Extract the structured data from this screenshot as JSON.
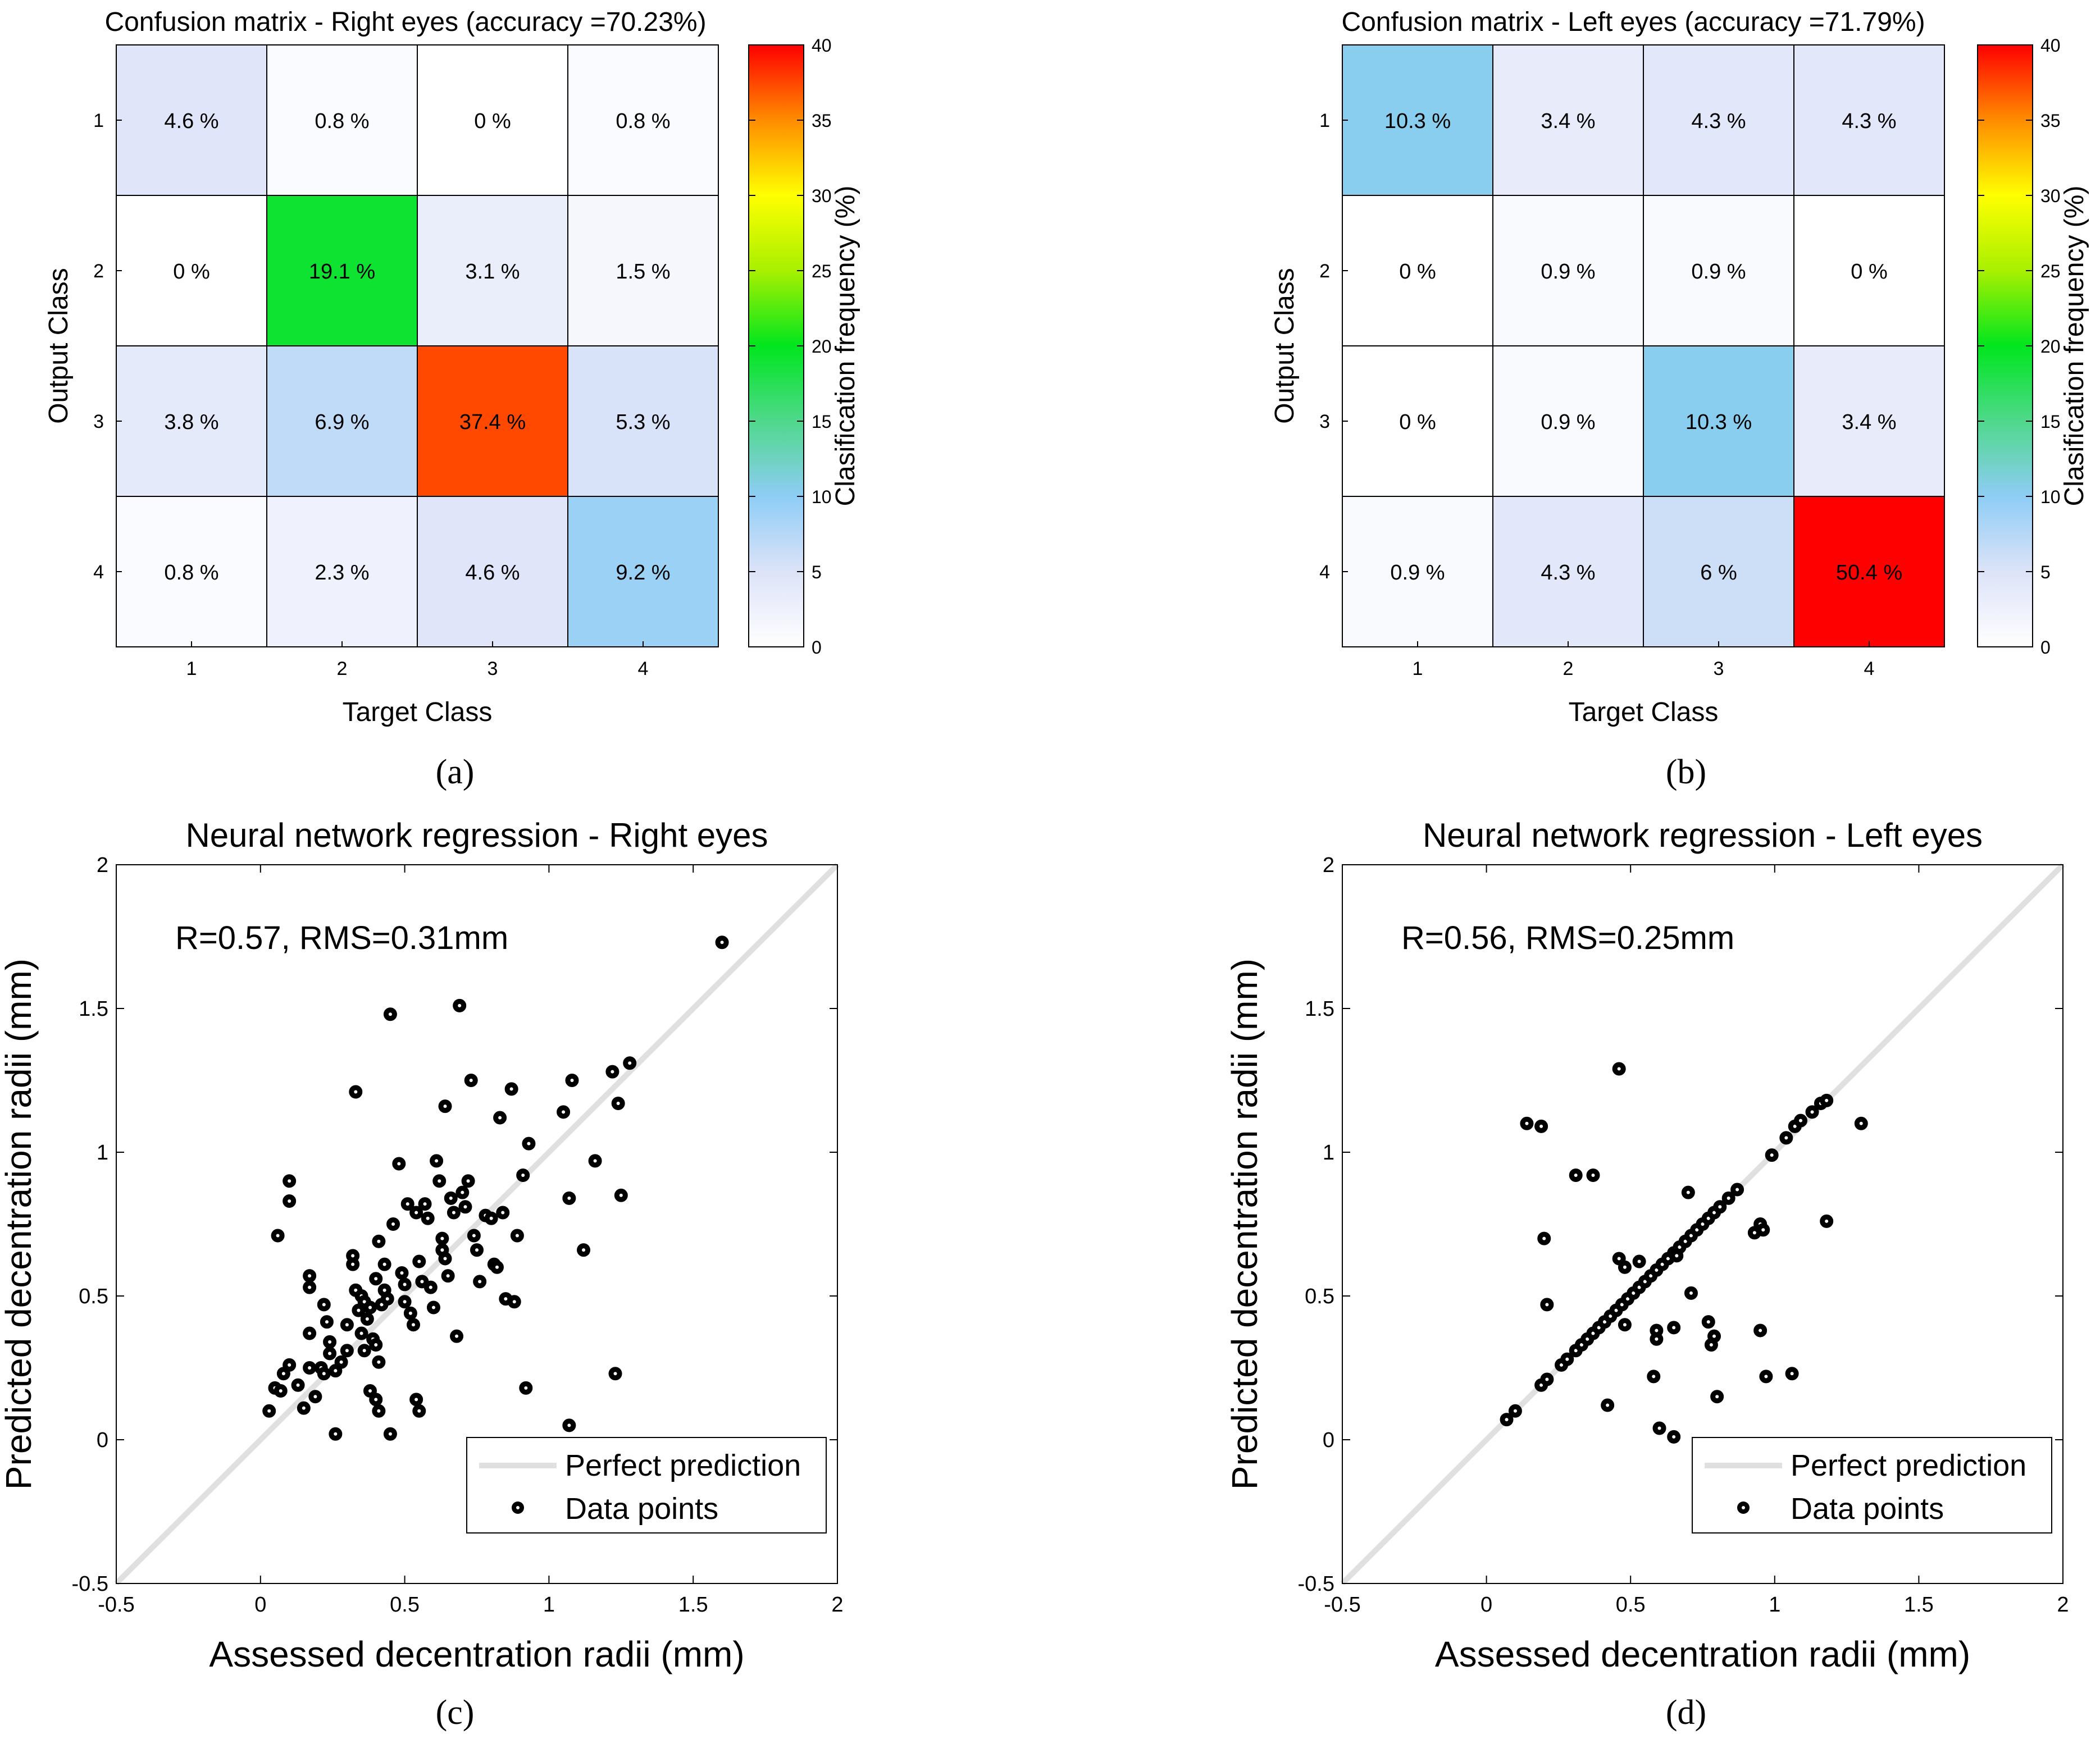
{
  "chart_data": [
    {
      "id": "a",
      "type": "heatmap",
      "subcaption": "(a)",
      "title": "Confusion matrix - Right eyes (accuracy =70.23%)",
      "xlabel": "Target Class",
      "ylabel": "Output Class",
      "x_categories": [
        "1",
        "2",
        "3",
        "4"
      ],
      "y_categories": [
        "1",
        "2",
        "3",
        "4"
      ],
      "values": [
        [
          4.6,
          0.8,
          0,
          0.8
        ],
        [
          0,
          19.1,
          3.1,
          1.5
        ],
        [
          3.8,
          6.9,
          37.4,
          5.3
        ],
        [
          0.8,
          2.3,
          4.6,
          9.2
        ]
      ],
      "cell_labels": [
        [
          "4.6 %",
          "0.8 %",
          "0 %",
          "0.8 %"
        ],
        [
          "0 %",
          "19.1 %",
          "3.1 %",
          "1.5 %"
        ],
        [
          "3.8 %",
          "6.9 %",
          "37.4 %",
          "5.3 %"
        ],
        [
          "0.8 %",
          "2.3 %",
          "4.6 %",
          "9.2 %"
        ]
      ],
      "colorbar": {
        "label": "Clasification frequency (%)",
        "range": [
          0,
          40
        ],
        "ticks": [
          "0",
          "5",
          "10",
          "15",
          "20",
          "25",
          "30",
          "35",
          "40"
        ]
      }
    },
    {
      "id": "b",
      "type": "heatmap",
      "subcaption": "(b)",
      "title": "Confusion matrix - Left eyes (accuracy =71.79%)",
      "xlabel": "Target Class",
      "ylabel": "Output Class",
      "x_categories": [
        "1",
        "2",
        "3",
        "4"
      ],
      "y_categories": [
        "1",
        "2",
        "3",
        "4"
      ],
      "values": [
        [
          10.3,
          3.4,
          4.3,
          4.3
        ],
        [
          0,
          0.9,
          0.9,
          0
        ],
        [
          0,
          0.9,
          10.3,
          3.4
        ],
        [
          0.9,
          4.3,
          6,
          50.4
        ]
      ],
      "cell_labels": [
        [
          "10.3 %",
          "3.4 %",
          "4.3 %",
          "4.3 %"
        ],
        [
          "0 %",
          "0.9 %",
          "0.9 %",
          "0 %"
        ],
        [
          "0 %",
          "0.9 %",
          "10.3 %",
          "3.4 %"
        ],
        [
          "0.9 %",
          "4.3 %",
          "6 %",
          "50.4 %"
        ]
      ],
      "colorbar": {
        "label": "Clasification frequency (%)",
        "range": [
          0,
          40
        ],
        "ticks": [
          "0",
          "5",
          "10",
          "15",
          "20",
          "25",
          "30",
          "35",
          "40"
        ]
      }
    },
    {
      "id": "c",
      "type": "scatter",
      "subcaption": "(c)",
      "title": "Neural network regression - Right eyes",
      "xlabel": "Assessed decentration radii (mm)",
      "ylabel": "Predicted decentration radii (mm)",
      "xlim": [
        -0.5,
        2
      ],
      "ylim": [
        -0.5,
        2
      ],
      "xticks": [
        "-0.5",
        "0",
        "0.5",
        "1",
        "1.5",
        "2"
      ],
      "yticks": [
        "-0.5",
        "0",
        "0.5",
        "1",
        "1.5",
        "2"
      ],
      "annotation": "R=0.57, RMS=0.31mm",
      "legend": [
        "Perfect prediction",
        "Data points"
      ],
      "legend_position": "bottom-right",
      "perfect_line": [
        [
          -0.5,
          -0.5
        ],
        [
          2,
          2
        ]
      ],
      "points": [
        [
          0.03,
          0.1
        ],
        [
          0.05,
          0.18
        ],
        [
          0.07,
          0.17
        ],
        [
          0.08,
          0.23
        ],
        [
          0.1,
          0.26
        ],
        [
          0.13,
          0.19
        ],
        [
          0.15,
          0.11
        ],
        [
          0.17,
          0.25
        ],
        [
          0.19,
          0.15
        ],
        [
          0.21,
          0.25
        ],
        [
          0.22,
          0.23
        ],
        [
          0.24,
          0.3
        ],
        [
          0.26,
          0.24
        ],
        [
          0.28,
          0.27
        ],
        [
          0.3,
          0.31
        ],
        [
          0.06,
          0.71
        ],
        [
          0.1,
          0.9
        ],
        [
          0.1,
          0.83
        ],
        [
          0.17,
          0.57
        ],
        [
          0.17,
          0.53
        ],
        [
          0.17,
          0.37
        ],
        [
          0.22,
          0.47
        ],
        [
          0.23,
          0.41
        ],
        [
          0.24,
          0.34
        ],
        [
          0.26,
          0.02
        ],
        [
          0.32,
          0.64
        ],
        [
          0.32,
          0.61
        ],
        [
          0.33,
          0.52
        ],
        [
          0.34,
          0.45
        ],
        [
          0.35,
          0.5
        ],
        [
          0.36,
          0.48
        ],
        [
          0.37,
          0.42
        ],
        [
          0.38,
          0.46
        ],
        [
          0.39,
          0.35
        ],
        [
          0.4,
          0.33
        ],
        [
          0.41,
          0.27
        ],
        [
          0.4,
          0.56
        ],
        [
          0.42,
          0.47
        ],
        [
          0.43,
          0.52
        ],
        [
          0.44,
          0.49
        ],
        [
          0.41,
          0.69
        ],
        [
          0.43,
          0.61
        ],
        [
          0.35,
          0.37
        ],
        [
          0.36,
          0.31
        ],
        [
          0.3,
          0.4
        ],
        [
          0.33,
          1.21
        ],
        [
          0.45,
          1.48
        ],
        [
          0.46,
          0.75
        ],
        [
          0.48,
          0.96
        ],
        [
          0.49,
          0.58
        ],
        [
          0.5,
          0.54
        ],
        [
          0.5,
          0.48
        ],
        [
          0.51,
          0.82
        ],
        [
          0.52,
          0.44
        ],
        [
          0.53,
          0.4
        ],
        [
          0.54,
          0.79
        ],
        [
          0.55,
          0.62
        ],
        [
          0.56,
          0.55
        ],
        [
          0.57,
          0.82
        ],
        [
          0.58,
          0.77
        ],
        [
          0.59,
          0.53
        ],
        [
          0.6,
          0.46
        ],
        [
          0.61,
          0.97
        ],
        [
          0.62,
          0.9
        ],
        [
          0.63,
          0.7
        ],
        [
          0.63,
          0.66
        ],
        [
          0.64,
          0.63
        ],
        [
          0.65,
          0.57
        ],
        [
          0.66,
          0.84
        ],
        [
          0.67,
          0.79
        ],
        [
          0.68,
          0.36
        ],
        [
          0.69,
          1.51
        ],
        [
          0.7,
          0.86
        ],
        [
          0.71,
          0.81
        ],
        [
          0.72,
          0.9
        ],
        [
          0.73,
          1.25
        ],
        [
          0.74,
          0.71
        ],
        [
          0.75,
          0.66
        ],
        [
          0.76,
          0.55
        ],
        [
          0.78,
          0.78
        ],
        [
          0.8,
          0.77
        ],
        [
          0.81,
          0.61
        ],
        [
          0.82,
          0.6
        ],
        [
          0.83,
          1.12
        ],
        [
          0.84,
          0.79
        ],
        [
          0.85,
          0.49
        ],
        [
          0.87,
          1.22
        ],
        [
          0.88,
          0.48
        ],
        [
          0.89,
          0.71
        ],
        [
          0.91,
          0.92
        ],
        [
          0.93,
          1.03
        ],
        [
          0.64,
          1.16
        ],
        [
          0.38,
          0.17
        ],
        [
          0.4,
          0.14
        ],
        [
          0.41,
          0.1
        ],
        [
          0.45,
          0.02
        ],
        [
          0.54,
          0.14
        ],
        [
          0.55,
          0.1
        ],
        [
          0.92,
          0.18
        ],
        [
          1.05,
          1.14
        ],
        [
          1.07,
          0.84
        ],
        [
          1.08,
          1.25
        ],
        [
          1.07,
          0.05
        ],
        [
          1.12,
          0.66
        ],
        [
          1.16,
          0.97
        ],
        [
          1.22,
          1.28
        ],
        [
          1.23,
          0.23
        ],
        [
          1.24,
          1.17
        ],
        [
          1.25,
          0.85
        ],
        [
          1.28,
          1.31
        ],
        [
          1.6,
          1.73
        ]
      ]
    },
    {
      "id": "d",
      "type": "scatter",
      "subcaption": "(d)",
      "title": "Neural network regression - Left eyes",
      "xlabel": "Assessed decentration radii (mm)",
      "ylabel": "Predicted decentration radii (mm)",
      "xlim": [
        -0.5,
        2
      ],
      "ylim": [
        -0.5,
        2
      ],
      "xticks": [
        "-0.5",
        "0",
        "0.5",
        "1",
        "1.5",
        "2"
      ],
      "yticks": [
        "-0.5",
        "0",
        "0.5",
        "1",
        "1.5",
        "2"
      ],
      "annotation": "R=0.56, RMS=0.25mm",
      "legend": [
        "Perfect prediction",
        "Data points"
      ],
      "legend_position": "bottom-right",
      "perfect_line": [
        [
          -0.5,
          -0.5
        ],
        [
          2,
          2
        ]
      ],
      "points": [
        [
          0.07,
          0.07
        ],
        [
          0.1,
          0.1
        ],
        [
          0.19,
          0.19
        ],
        [
          0.21,
          0.21
        ],
        [
          0.26,
          0.26
        ],
        [
          0.28,
          0.28
        ],
        [
          0.31,
          0.31
        ],
        [
          0.33,
          0.33
        ],
        [
          0.35,
          0.35
        ],
        [
          0.37,
          0.37
        ],
        [
          0.39,
          0.39
        ],
        [
          0.41,
          0.41
        ],
        [
          0.43,
          0.43
        ],
        [
          0.45,
          0.45
        ],
        [
          0.47,
          0.47
        ],
        [
          0.49,
          0.49
        ],
        [
          0.51,
          0.51
        ],
        [
          0.53,
          0.53
        ],
        [
          0.55,
          0.55
        ],
        [
          0.57,
          0.57
        ],
        [
          0.59,
          0.59
        ],
        [
          0.61,
          0.61
        ],
        [
          0.63,
          0.63
        ],
        [
          0.65,
          0.65
        ],
        [
          0.67,
          0.67
        ],
        [
          0.69,
          0.69
        ],
        [
          0.71,
          0.71
        ],
        [
          0.73,
          0.73
        ],
        [
          0.75,
          0.75
        ],
        [
          0.77,
          0.77
        ],
        [
          0.79,
          0.79
        ],
        [
          0.81,
          0.81
        ],
        [
          0.84,
          0.84
        ],
        [
          0.87,
          0.87
        ],
        [
          0.99,
          0.99
        ],
        [
          1.04,
          1.05
        ],
        [
          1.07,
          1.09
        ],
        [
          1.09,
          1.11
        ],
        [
          1.13,
          1.14
        ],
        [
          1.16,
          1.17
        ],
        [
          1.18,
          1.18
        ],
        [
          0.14,
          1.1
        ],
        [
          0.19,
          1.09
        ],
        [
          0.31,
          0.92
        ],
        [
          0.37,
          0.92
        ],
        [
          0.2,
          0.7
        ],
        [
          0.21,
          0.47
        ],
        [
          0.46,
          1.29
        ],
        [
          0.46,
          0.63
        ],
        [
          0.48,
          0.6
        ],
        [
          0.53,
          0.62
        ],
        [
          0.48,
          0.4
        ],
        [
          0.42,
          0.12
        ],
        [
          0.58,
          0.22
        ],
        [
          0.59,
          0.38
        ],
        [
          0.59,
          0.35
        ],
        [
          0.6,
          0.04
        ],
        [
          0.65,
          0.01
        ],
        [
          0.65,
          0.39
        ],
        [
          0.66,
          0.64
        ],
        [
          0.7,
          0.86
        ],
        [
          0.71,
          0.51
        ],
        [
          0.77,
          0.41
        ],
        [
          0.78,
          0.33
        ],
        [
          0.79,
          0.36
        ],
        [
          0.8,
          0.15
        ],
        [
          0.93,
          0.72
        ],
        [
          0.95,
          0.75
        ],
        [
          0.96,
          0.73
        ],
        [
          0.95,
          0.38
        ],
        [
          0.97,
          0.22
        ],
        [
          1.06,
          0.23
        ],
        [
          1.18,
          0.76
        ],
        [
          1.3,
          1.1
        ]
      ]
    }
  ]
}
